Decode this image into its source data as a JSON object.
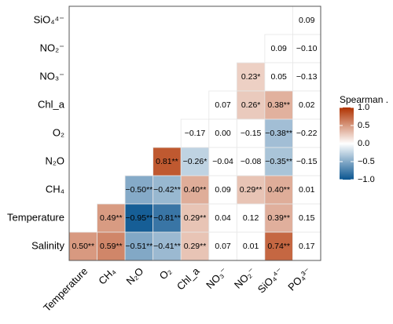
{
  "chart_data": {
    "type": "heatmap",
    "rows": [
      "SiO₄⁴⁻",
      "NO₂⁻",
      "NO₃⁻",
      "Chl_a",
      "O₂",
      "N₂O",
      "CH₄",
      "Temperature",
      "Salinity"
    ],
    "columns": [
      "Temperature",
      "CH₄",
      "N₂O",
      "O₂",
      "Chl_a",
      "NO₃⁻",
      "NO₂⁻",
      "SiO₄⁴⁻",
      "PO₄³⁻"
    ],
    "values": [
      [
        null,
        null,
        null,
        null,
        null,
        null,
        null,
        null,
        0.09
      ],
      [
        null,
        null,
        null,
        null,
        null,
        null,
        null,
        0.09,
        -0.1
      ],
      [
        null,
        null,
        null,
        null,
        null,
        null,
        0.23,
        0.05,
        -0.13
      ],
      [
        null,
        null,
        null,
        null,
        null,
        0.07,
        0.26,
        0.38,
        0.02
      ],
      [
        null,
        null,
        null,
        null,
        -0.17,
        0.0,
        -0.15,
        -0.38,
        -0.22
      ],
      [
        null,
        null,
        null,
        0.81,
        -0.26,
        -0.04,
        -0.08,
        -0.35,
        -0.15
      ],
      [
        null,
        null,
        -0.5,
        -0.42,
        0.4,
        0.09,
        0.29,
        0.4,
        0.01
      ],
      [
        null,
        0.49,
        -0.95,
        -0.81,
        0.29,
        0.04,
        0.12,
        0.39,
        0.15
      ],
      [
        0.5,
        0.59,
        -0.51,
        -0.41,
        0.29,
        0.07,
        0.01,
        0.74,
        0.17
      ]
    ],
    "value_labels": [
      [
        null,
        null,
        null,
        null,
        null,
        null,
        null,
        null,
        "0.09"
      ],
      [
        null,
        null,
        null,
        null,
        null,
        null,
        null,
        "0.09",
        "−0.10"
      ],
      [
        null,
        null,
        null,
        null,
        null,
        null,
        "0.23*",
        "0.05",
        "−0.13"
      ],
      [
        null,
        null,
        null,
        null,
        null,
        "0.07",
        "0.26*",
        "0.38**",
        "0.02"
      ],
      [
        null,
        null,
        null,
        null,
        "−0.17",
        "0.00",
        "−0.15",
        "−0.38**",
        "−0.22"
      ],
      [
        null,
        null,
        null,
        "0.81**",
        "−0.26*",
        "−0.04",
        "−0.08",
        "−0.35**",
        "−0.15"
      ],
      [
        null,
        null,
        "−0.50**",
        "−0.42**",
        "0.40**",
        "0.09",
        "0.29**",
        "0.40**",
        "0.01"
      ],
      [
        null,
        "0.49**",
        "−0.95**",
        "−0.81**",
        "0.29**",
        "0.04",
        "0.12",
        "0.39**",
        "0.15"
      ],
      [
        "0.50**",
        "0.59**",
        "−0.51**",
        "−0.41**",
        "0.29**",
        "0.07",
        "0.01",
        "0.74**",
        "0.17"
      ]
    ],
    "legend_title": "Spearman .",
    "colorlim": [
      -1,
      1
    ],
    "colors": [
      "#0a5590",
      "#ffffff",
      "#b03200"
    ],
    "colorticks": [
      {
        "value": 1,
        "label": "1.0"
      },
      {
        "value": 0.5,
        "label": "0.5"
      },
      {
        "value": 0,
        "label": "0.0"
      },
      {
        "value": -0.5,
        "label": "−0.5"
      },
      {
        "value": -1,
        "label": "−1.0"
      }
    ]
  }
}
